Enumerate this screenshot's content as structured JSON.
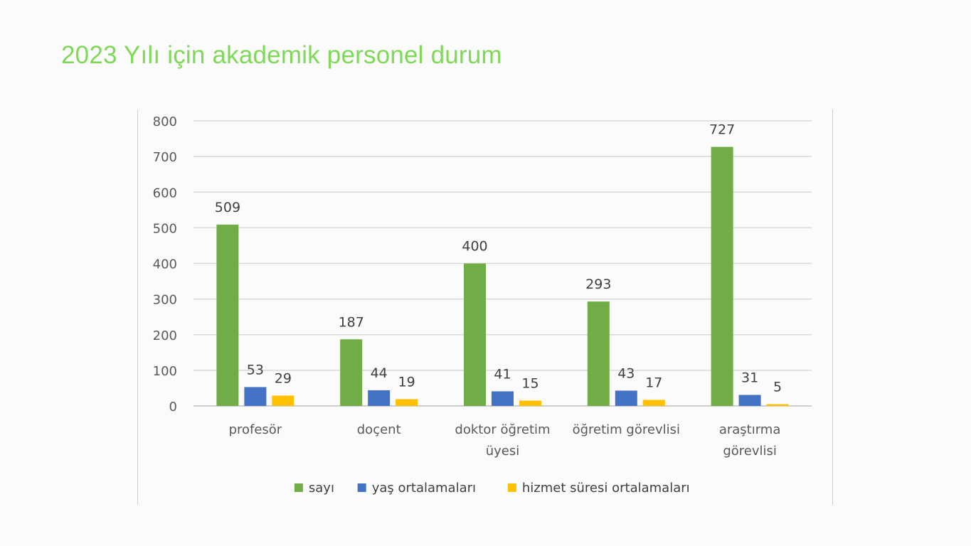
{
  "page": {
    "title": "2023 Yılı için akademik personel durum"
  },
  "chart_data": {
    "type": "bar",
    "categories": [
      [
        "profesör"
      ],
      [
        "doçent"
      ],
      [
        "doktor öğretim",
        "üyesi"
      ],
      [
        "öğretim görevlisi"
      ],
      [
        "araştırma",
        "görevlisi"
      ]
    ],
    "series": [
      {
        "name": "sayı",
        "color": "#70ad47",
        "values": [
          509,
          187,
          400,
          293,
          727
        ]
      },
      {
        "name": "yaş ortalamaları",
        "color": "#4472c4",
        "values": [
          53,
          44,
          41,
          43,
          31
        ]
      },
      {
        "name": "hizmet süresi ortalamaları",
        "color": "#ffc000",
        "values": [
          29,
          19,
          15,
          17,
          5
        ]
      }
    ],
    "yticks": [
      0,
      100,
      200,
      300,
      400,
      500,
      600,
      700,
      800
    ],
    "ylim": [
      0,
      800
    ],
    "grid": true,
    "legend": "bottom",
    "data_labels": true
  }
}
